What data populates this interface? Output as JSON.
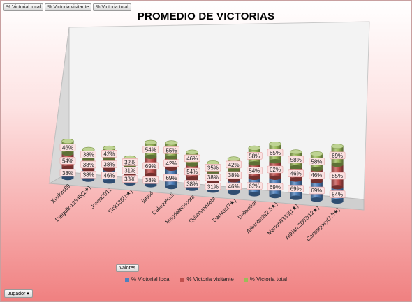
{
  "field_buttons": {
    "local": "% Victorial local",
    "visitante": "% Victoria visitante",
    "total": "% Victoria total"
  },
  "values_button": "Valores",
  "row_field_button": "Jugador",
  "colors": {
    "local": "#4f81bd",
    "visitante": "#c0504d",
    "total": "#9bbb59"
  },
  "chart_data": {
    "type": "bar",
    "stacked": true,
    "style": "3d-cylinder",
    "title": "PROMEDIO DE VICTORIAS",
    "legend_position": "bottom",
    "grid": false,
    "categories": [
      "Xuskas69",
      "Dieguito12345(1★)",
      "Josea2012",
      "Sick135(1★)",
      "jabo4",
      "Calaquendi",
      "Magdalenacora",
      "Quienunazeta",
      "Danyos(7★)",
      "Delereitor",
      "Arkantosh(2.5★)",
      "Marlon9333(1★)",
      "Adrian.2002(12★)",
      "Carlosguey(7.5★)"
    ],
    "series": [
      {
        "name": "% Victorial local",
        "values": [
          38,
          38,
          46,
          33,
          38,
          69,
          38,
          31,
          46,
          62,
          69,
          69,
          69,
          54
        ]
      },
      {
        "name": "% Victoria visitante",
        "values": [
          54,
          38,
          38,
          31,
          69,
          42,
          54,
          38,
          38,
          54,
          62,
          46,
          46,
          85
        ]
      },
      {
        "name": "% Victoria total",
        "values": [
          46,
          38,
          42,
          32,
          54,
          55,
          46,
          35,
          42,
          58,
          65,
          58,
          58,
          69
        ]
      }
    ]
  }
}
